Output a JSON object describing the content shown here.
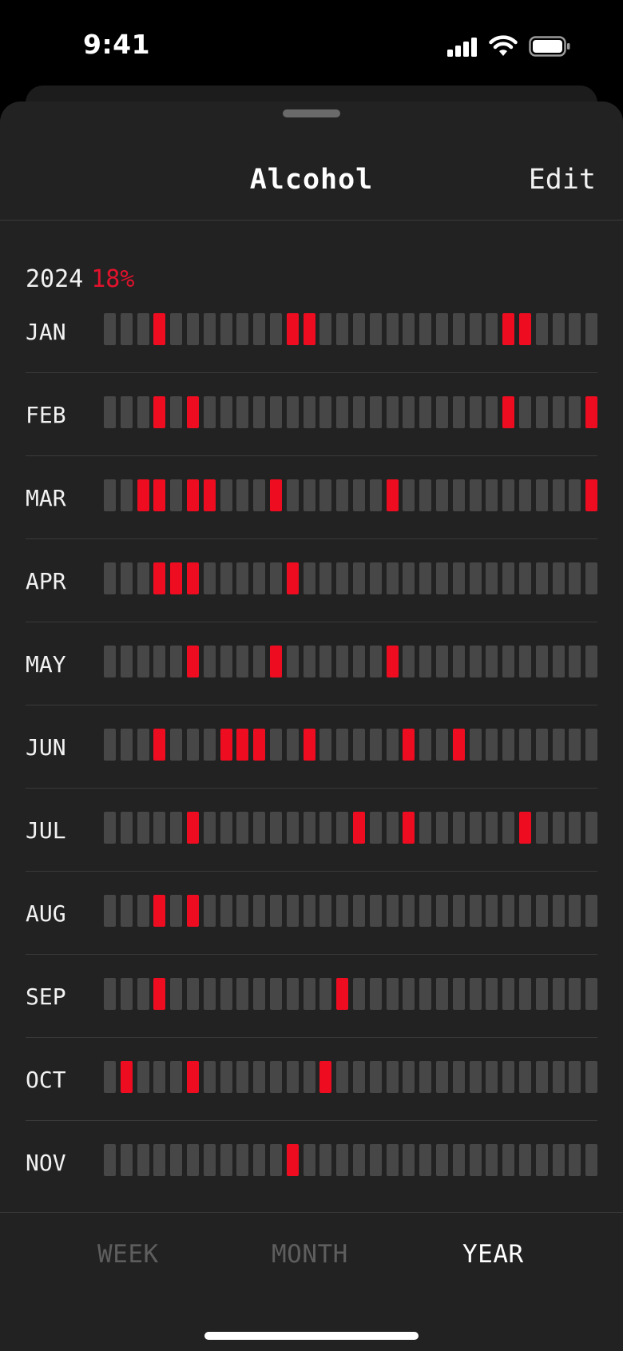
{
  "status_bar": {
    "time": "9:41",
    "icons": [
      "signal-icon",
      "wifi-icon",
      "battery-icon"
    ]
  },
  "header": {
    "title": "Alcohol",
    "edit_label": "Edit"
  },
  "summary": {
    "year": "2024",
    "percent": "18%"
  },
  "colors": {
    "accent": "#ee0c21",
    "empty_day": "#474747",
    "sheet_background": "#222222"
  },
  "days_per_row": 30,
  "months": [
    {
      "label": "JAN",
      "on_days": [
        4,
        12,
        13,
        25,
        26
      ]
    },
    {
      "label": "FEB",
      "on_days": [
        4,
        6,
        25,
        30
      ]
    },
    {
      "label": "MAR",
      "on_days": [
        3,
        4,
        6,
        7,
        11,
        18,
        30
      ]
    },
    {
      "label": "APR",
      "on_days": [
        4,
        5,
        6,
        12
      ]
    },
    {
      "label": "MAY",
      "on_days": [
        6,
        11,
        18
      ]
    },
    {
      "label": "JUN",
      "on_days": [
        4,
        8,
        9,
        10,
        13,
        19,
        22
      ]
    },
    {
      "label": "JUL",
      "on_days": [
        6,
        16,
        19,
        26
      ]
    },
    {
      "label": "AUG",
      "on_days": [
        4,
        6
      ]
    },
    {
      "label": "SEP",
      "on_days": [
        4,
        15
      ]
    },
    {
      "label": "OCT",
      "on_days": [
        2,
        6,
        14
      ]
    },
    {
      "label": "NOV",
      "on_days": [
        12
      ]
    }
  ],
  "tabs": [
    {
      "label": "WEEK",
      "active": false
    },
    {
      "label": "MONTH",
      "active": false
    },
    {
      "label": "YEAR",
      "active": true
    }
  ]
}
